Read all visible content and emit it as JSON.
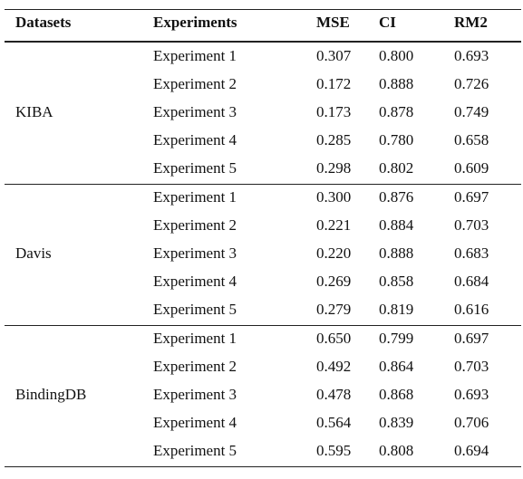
{
  "table": {
    "header": [
      "Datasets",
      "Experiments",
      "MSE",
      "CI",
      "RM2"
    ],
    "groups": [
      {
        "dataset": "KIBA",
        "rows": [
          [
            "Experiment 1",
            "0.307",
            "0.800",
            "0.693"
          ],
          [
            "Experiment 2",
            "0.172",
            "0.888",
            "0.726"
          ],
          [
            "Experiment 3",
            "0.173",
            "0.878",
            "0.749"
          ],
          [
            "Experiment 4",
            "0.285",
            "0.780",
            "0.658"
          ],
          [
            "Experiment 5",
            "0.298",
            "0.802",
            "0.609"
          ]
        ]
      },
      {
        "dataset": "Davis",
        "rows": [
          [
            "Experiment 1",
            "0.300",
            "0.876",
            "0.697"
          ],
          [
            "Experiment 2",
            "0.221",
            "0.884",
            "0.703"
          ],
          [
            "Experiment 3",
            "0.220",
            "0.888",
            "0.683"
          ],
          [
            "Experiment 4",
            "0.269",
            "0.858",
            "0.684"
          ],
          [
            "Experiment 5",
            "0.279",
            "0.819",
            "0.616"
          ]
        ]
      },
      {
        "dataset": "BindingDB",
        "rows": [
          [
            "Experiment 1",
            "0.650",
            "0.799",
            "0.697"
          ],
          [
            "Experiment 2",
            "0.492",
            "0.864",
            "0.703"
          ],
          [
            "Experiment 3",
            "0.478",
            "0.868",
            "0.693"
          ],
          [
            "Experiment 4",
            "0.564",
            "0.839",
            "0.706"
          ],
          [
            "Experiment 5",
            "0.595",
            "0.808",
            "0.694"
          ]
        ]
      }
    ]
  }
}
